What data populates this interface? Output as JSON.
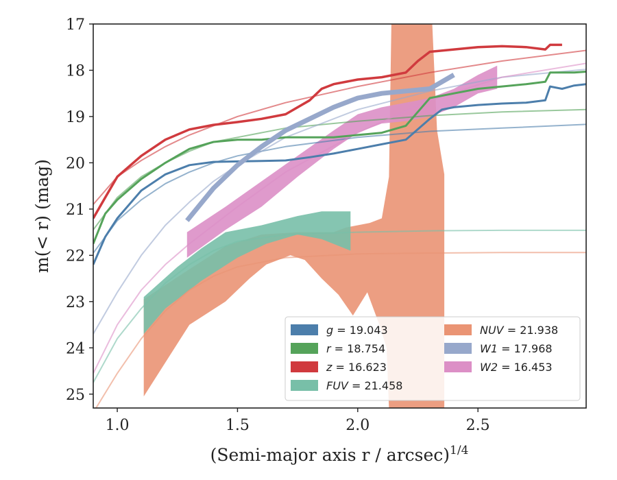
{
  "chart_data": {
    "type": "line",
    "xlabel": "(Semi-major axis r / arcsec)",
    "xlabel_sup": "1/4",
    "ylabel": "m(< r) (mag)",
    "xlim": [
      0.9,
      2.95
    ],
    "ylim": [
      25.3,
      17.0
    ],
    "y_inverted": true,
    "grid": false,
    "legend_position": "lower-right",
    "xticks": [
      {
        "value": 1.0,
        "label": "1.0"
      },
      {
        "value": 1.5,
        "label": "1.5"
      },
      {
        "value": 2.0,
        "label": "2.0"
      },
      {
        "value": 2.5,
        "label": "2.5"
      }
    ],
    "yticks": [
      {
        "value": 17,
        "label": "17"
      },
      {
        "value": 18,
        "label": "18"
      },
      {
        "value": 19,
        "label": "19"
      },
      {
        "value": 20,
        "label": "20"
      },
      {
        "value": 21,
        "label": "21"
      },
      {
        "value": 22,
        "label": "22"
      },
      {
        "value": 23,
        "label": "23"
      },
      {
        "value": 24,
        "label": "24"
      },
      {
        "value": 25,
        "label": "25"
      }
    ],
    "legend": [
      {
        "band": "g",
        "value": "19.043",
        "color": "#4c7eab"
      },
      {
        "band": "r",
        "value": "18.754",
        "color": "#55a35a"
      },
      {
        "band": "z",
        "value": "16.623",
        "color": "#d03a3e"
      },
      {
        "band": "FUV",
        "value": "21.458",
        "color": "#78bfa8"
      },
      {
        "band": "NUV",
        "value": "21.938",
        "color": "#ea9474"
      },
      {
        "band": "W1",
        "value": "17.968",
        "color": "#97a8cb"
      },
      {
        "band": "W2",
        "value": "16.453",
        "color": "#dc8fc6"
      }
    ],
    "bands": [
      {
        "name": "NUV",
        "color": "#ea9474",
        "upper": [
          [
            1.11,
            22.95
          ],
          [
            1.3,
            22.3
          ],
          [
            1.45,
            21.8
          ],
          [
            1.6,
            21.55
          ],
          [
            1.75,
            21.5
          ],
          [
            1.9,
            21.5
          ],
          [
            1.95,
            21.4
          ],
          [
            2.0,
            21.35
          ],
          [
            2.05,
            21.3
          ],
          [
            2.1,
            21.2
          ],
          [
            2.13,
            20.3
          ],
          [
            2.14,
            17.0
          ],
          [
            2.31,
            17.0
          ],
          [
            2.33,
            19.3
          ],
          [
            2.36,
            20.25
          ]
        ],
        "lower": [
          [
            2.36,
            25.3
          ],
          [
            2.13,
            25.3
          ],
          [
            2.12,
            24.0
          ],
          [
            2.09,
            23.5
          ],
          [
            2.04,
            22.8
          ],
          [
            1.98,
            23.3
          ],
          [
            1.92,
            22.85
          ],
          [
            1.85,
            22.5
          ],
          [
            1.78,
            22.1
          ],
          [
            1.72,
            22.0
          ],
          [
            1.62,
            22.2
          ],
          [
            1.55,
            22.5
          ],
          [
            1.45,
            23.0
          ],
          [
            1.3,
            23.5
          ],
          [
            1.11,
            25.05
          ]
        ]
      },
      {
        "name": "FUV",
        "color": "#78bfa8",
        "upper": [
          [
            1.11,
            22.9
          ],
          [
            1.25,
            22.25
          ],
          [
            1.35,
            21.85
          ],
          [
            1.45,
            21.5
          ],
          [
            1.6,
            21.35
          ],
          [
            1.75,
            21.15
          ],
          [
            1.85,
            21.05
          ],
          [
            1.97,
            21.05
          ]
        ],
        "lower": [
          [
            1.97,
            21.9
          ],
          [
            1.85,
            21.65
          ],
          [
            1.75,
            21.55
          ],
          [
            1.62,
            21.75
          ],
          [
            1.5,
            22.05
          ],
          [
            1.35,
            22.55
          ],
          [
            1.2,
            23.15
          ],
          [
            1.11,
            23.7
          ]
        ]
      },
      {
        "name": "W2",
        "color": "#dc8fc6",
        "upper": [
          [
            1.29,
            21.5
          ],
          [
            1.45,
            20.95
          ],
          [
            1.6,
            20.4
          ],
          [
            1.75,
            19.85
          ],
          [
            1.9,
            19.3
          ],
          [
            2.0,
            18.95
          ],
          [
            2.1,
            18.8
          ],
          [
            2.2,
            18.7
          ],
          [
            2.3,
            18.6
          ],
          [
            2.4,
            18.4
          ],
          [
            2.5,
            18.1
          ],
          [
            2.58,
            17.9
          ]
        ],
        "lower": [
          [
            2.58,
            18.4
          ],
          [
            2.5,
            18.5
          ],
          [
            2.4,
            18.8
          ],
          [
            2.3,
            19.0
          ],
          [
            2.2,
            19.1
          ],
          [
            2.1,
            19.15
          ],
          [
            2.0,
            19.35
          ],
          [
            1.9,
            19.7
          ],
          [
            1.75,
            20.3
          ],
          [
            1.6,
            20.95
          ],
          [
            1.45,
            21.45
          ],
          [
            1.29,
            22.05
          ]
        ]
      }
    ],
    "series": [
      {
        "name": "g",
        "color": "#4c7eab",
        "width": 3,
        "points": [
          [
            0.9,
            22.2
          ],
          [
            0.95,
            21.6
          ],
          [
            1.0,
            21.2
          ],
          [
            1.05,
            20.9
          ],
          [
            1.1,
            20.6
          ],
          [
            1.2,
            20.25
          ],
          [
            1.3,
            20.05
          ],
          [
            1.4,
            19.98
          ],
          [
            1.5,
            19.97
          ],
          [
            1.6,
            19.96
          ],
          [
            1.7,
            19.95
          ],
          [
            1.8,
            19.88
          ],
          [
            1.9,
            19.8
          ],
          [
            2.0,
            19.7
          ],
          [
            2.1,
            19.6
          ],
          [
            2.2,
            19.5
          ],
          [
            2.3,
            19.05
          ],
          [
            2.35,
            18.85
          ],
          [
            2.4,
            18.8
          ],
          [
            2.5,
            18.75
          ],
          [
            2.6,
            18.72
          ],
          [
            2.7,
            18.7
          ],
          [
            2.78,
            18.65
          ],
          [
            2.8,
            18.35
          ],
          [
            2.85,
            18.4
          ],
          [
            2.9,
            18.33
          ],
          [
            2.95,
            18.3
          ]
        ]
      },
      {
        "name": "r",
        "color": "#55a35a",
        "width": 3,
        "points": [
          [
            0.9,
            21.75
          ],
          [
            0.95,
            21.1
          ],
          [
            1.0,
            20.8
          ],
          [
            1.1,
            20.35
          ],
          [
            1.2,
            20.0
          ],
          [
            1.3,
            19.7
          ],
          [
            1.4,
            19.55
          ],
          [
            1.5,
            19.5
          ],
          [
            1.6,
            19.5
          ],
          [
            1.7,
            19.45
          ],
          [
            1.8,
            19.45
          ],
          [
            1.9,
            19.45
          ],
          [
            2.0,
            19.4
          ],
          [
            2.1,
            19.35
          ],
          [
            2.2,
            19.2
          ],
          [
            2.25,
            18.9
          ],
          [
            2.3,
            18.6
          ],
          [
            2.4,
            18.5
          ],
          [
            2.5,
            18.4
          ],
          [
            2.6,
            18.35
          ],
          [
            2.7,
            18.3
          ],
          [
            2.78,
            18.25
          ],
          [
            2.8,
            18.05
          ],
          [
            2.9,
            18.05
          ],
          [
            2.95,
            18.03
          ]
        ]
      },
      {
        "name": "z",
        "color": "#d03a3e",
        "width": 3.5,
        "points": [
          [
            0.9,
            21.2
          ],
          [
            0.95,
            20.75
          ],
          [
            1.0,
            20.3
          ],
          [
            1.1,
            19.85
          ],
          [
            1.2,
            19.5
          ],
          [
            1.3,
            19.28
          ],
          [
            1.4,
            19.18
          ],
          [
            1.5,
            19.12
          ],
          [
            1.6,
            19.05
          ],
          [
            1.7,
            18.95
          ],
          [
            1.8,
            18.65
          ],
          [
            1.85,
            18.4
          ],
          [
            1.9,
            18.3
          ],
          [
            2.0,
            18.2
          ],
          [
            2.1,
            18.15
          ],
          [
            2.2,
            18.05
          ],
          [
            2.25,
            17.8
          ],
          [
            2.3,
            17.6
          ],
          [
            2.4,
            17.55
          ],
          [
            2.5,
            17.5
          ],
          [
            2.6,
            17.48
          ],
          [
            2.7,
            17.5
          ],
          [
            2.78,
            17.55
          ],
          [
            2.8,
            17.45
          ],
          [
            2.85,
            17.45
          ]
        ]
      },
      {
        "name": "W1",
        "color": "#97a8cb",
        "width": 7,
        "points": [
          [
            1.29,
            21.25
          ],
          [
            1.4,
            20.55
          ],
          [
            1.5,
            20.05
          ],
          [
            1.6,
            19.65
          ],
          [
            1.7,
            19.3
          ],
          [
            1.8,
            19.05
          ],
          [
            1.9,
            18.8
          ],
          [
            2.0,
            18.6
          ],
          [
            2.1,
            18.5
          ],
          [
            2.2,
            18.45
          ],
          [
            2.3,
            18.4
          ],
          [
            2.35,
            18.25
          ],
          [
            2.4,
            18.1
          ]
        ]
      },
      {
        "name": "g-model",
        "color": "#4c7eab",
        "width": 2,
        "opacity": 0.6,
        "points": [
          [
            0.9,
            21.95
          ],
          [
            1.0,
            21.25
          ],
          [
            1.1,
            20.8
          ],
          [
            1.2,
            20.45
          ],
          [
            1.3,
            20.2
          ],
          [
            1.4,
            20.0
          ],
          [
            1.5,
            19.85
          ],
          [
            1.7,
            19.65
          ],
          [
            2.0,
            19.45
          ],
          [
            2.3,
            19.32
          ],
          [
            2.6,
            19.25
          ],
          [
            2.95,
            19.17
          ]
        ]
      },
      {
        "name": "r-model",
        "color": "#55a35a",
        "width": 2,
        "opacity": 0.6,
        "points": [
          [
            0.9,
            21.45
          ],
          [
            1.0,
            20.75
          ],
          [
            1.1,
            20.3
          ],
          [
            1.2,
            20.0
          ],
          [
            1.3,
            19.75
          ],
          [
            1.4,
            19.55
          ],
          [
            1.5,
            19.45
          ],
          [
            1.7,
            19.25
          ],
          [
            2.0,
            19.1
          ],
          [
            2.3,
            18.98
          ],
          [
            2.6,
            18.9
          ],
          [
            2.95,
            18.85
          ]
        ]
      },
      {
        "name": "z-model",
        "color": "#d03a3e",
        "width": 2,
        "opacity": 0.6,
        "points": [
          [
            0.9,
            20.9
          ],
          [
            1.0,
            20.3
          ],
          [
            1.1,
            19.95
          ],
          [
            1.2,
            19.65
          ],
          [
            1.3,
            19.4
          ],
          [
            1.4,
            19.2
          ],
          [
            1.5,
            19.0
          ],
          [
            1.7,
            18.7
          ],
          [
            2.0,
            18.35
          ],
          [
            2.3,
            18.05
          ],
          [
            2.6,
            17.8
          ],
          [
            2.95,
            17.57
          ]
        ]
      },
      {
        "name": "W1-model",
        "color": "#97a8cb",
        "width": 2,
        "opacity": 0.6,
        "points": [
          [
            0.9,
            23.7
          ],
          [
            1.0,
            22.8
          ],
          [
            1.1,
            22.0
          ],
          [
            1.2,
            21.35
          ],
          [
            1.3,
            20.85
          ],
          [
            1.4,
            20.4
          ],
          [
            1.5,
            20.05
          ],
          [
            1.7,
            19.45
          ],
          [
            2.0,
            18.85
          ],
          [
            2.3,
            18.45
          ],
          [
            2.6,
            18.15
          ],
          [
            2.95,
            17.98
          ]
        ]
      },
      {
        "name": "W2-model",
        "color": "#dc8fc6",
        "width": 2,
        "opacity": 0.6,
        "points": [
          [
            0.9,
            24.55
          ],
          [
            1.0,
            23.5
          ],
          [
            1.1,
            22.75
          ],
          [
            1.2,
            22.2
          ],
          [
            1.3,
            21.75
          ],
          [
            1.4,
            21.35
          ],
          [
            1.5,
            20.95
          ],
          [
            1.7,
            20.2
          ],
          [
            2.0,
            19.35
          ],
          [
            2.3,
            18.65
          ],
          [
            2.6,
            18.15
          ],
          [
            2.95,
            17.85
          ]
        ]
      },
      {
        "name": "FUV-model",
        "color": "#78bfa8",
        "width": 2,
        "opacity": 0.6,
        "points": [
          [
            0.9,
            24.75
          ],
          [
            1.0,
            23.8
          ],
          [
            1.1,
            23.15
          ],
          [
            1.2,
            22.6
          ],
          [
            1.3,
            22.2
          ],
          [
            1.4,
            21.9
          ],
          [
            1.5,
            21.7
          ],
          [
            1.7,
            21.55
          ],
          [
            2.0,
            21.5
          ],
          [
            2.3,
            21.47
          ],
          [
            2.6,
            21.46
          ],
          [
            2.95,
            21.46
          ]
        ]
      },
      {
        "name": "NUV-model",
        "color": "#ea9474",
        "width": 2,
        "opacity": 0.6,
        "points": [
          [
            0.9,
            25.4
          ],
          [
            1.0,
            24.55
          ],
          [
            1.1,
            23.8
          ],
          [
            1.2,
            23.2
          ],
          [
            1.3,
            22.75
          ],
          [
            1.4,
            22.45
          ],
          [
            1.5,
            22.25
          ],
          [
            1.7,
            22.05
          ],
          [
            2.0,
            21.97
          ],
          [
            2.3,
            21.95
          ],
          [
            2.6,
            21.94
          ],
          [
            2.95,
            21.94
          ]
        ]
      }
    ]
  }
}
